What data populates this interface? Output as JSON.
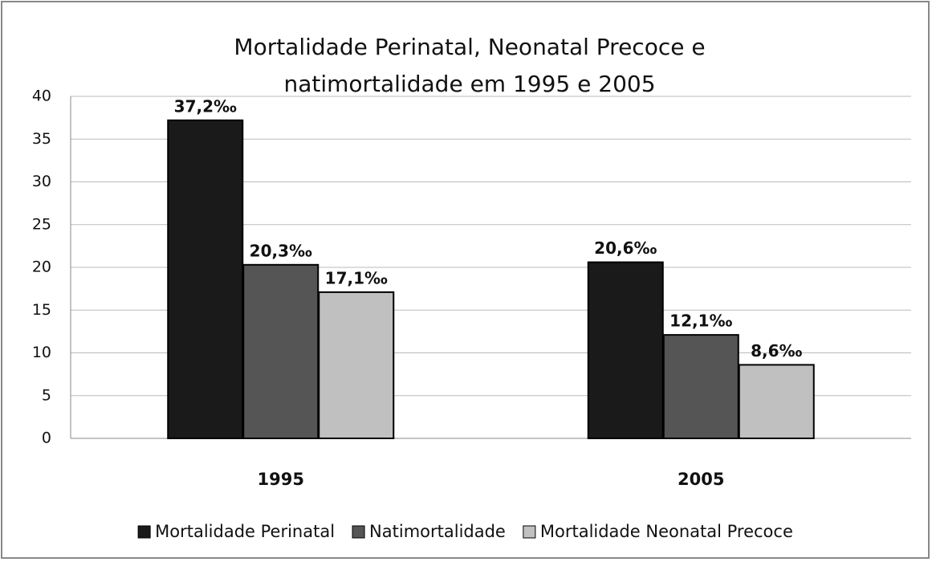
{
  "chart_data": {
    "type": "bar",
    "title": "Mortalidade Perinatal, Neonatal Precoce e natimortalidade em 1995 e 2005",
    "categories": [
      "1995",
      "2005"
    ],
    "series": [
      {
        "name": "Mortalidade Perinatal",
        "color": "#1a1a1a",
        "values": [
          37.2,
          20.6
        ],
        "value_labels": [
          "37,2‰",
          "20,6‰"
        ]
      },
      {
        "name": "Natimortalidade",
        "color": "#555555",
        "values": [
          20.3,
          12.1
        ],
        "value_labels": [
          "20,3‰",
          "12,1‰"
        ]
      },
      {
        "name": "Mortalidade Neonatal Precoce",
        "color": "#c0c0c0",
        "values": [
          17.1,
          8.6
        ],
        "value_labels": [
          "17,1‰",
          "8,6‰"
        ]
      }
    ],
    "ylim": [
      0,
      40
    ],
    "yticks": [
      0,
      5,
      10,
      15,
      20,
      25,
      30,
      35,
      40
    ],
    "grid": true,
    "legend": "bottom"
  }
}
